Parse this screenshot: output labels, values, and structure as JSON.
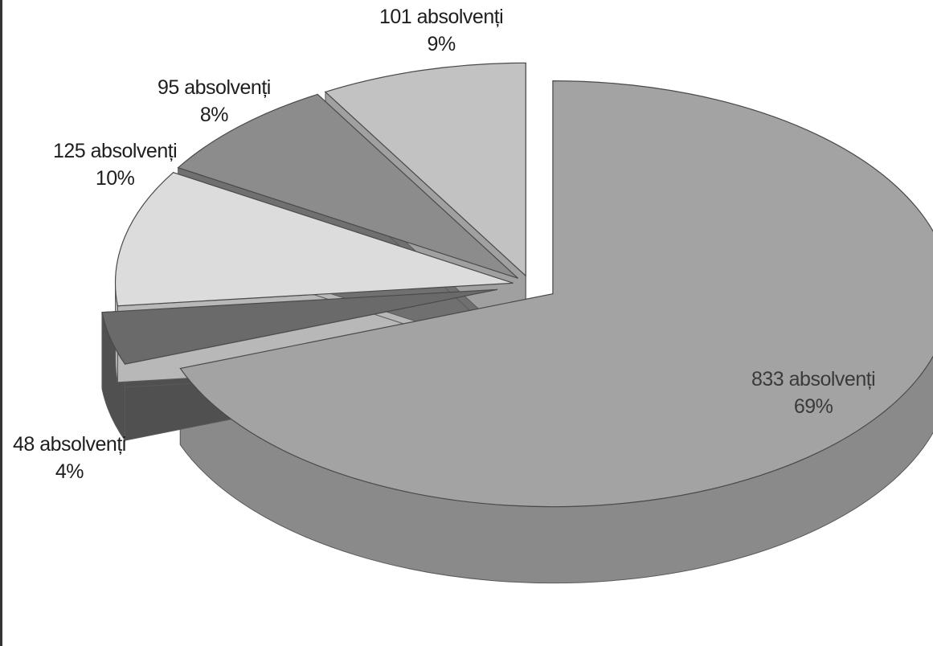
{
  "chart_data": {
    "type": "pie",
    "style": "3d-exploded",
    "title": "",
    "slices": [
      {
        "label": "833 absolvenți",
        "value": 833,
        "percent_label": "69%",
        "color": "#a3a3a3",
        "side_color": "#8a8a8a"
      },
      {
        "label": "48 absolvenți",
        "value": 48,
        "percent_label": "4%",
        "color": "#6a6a6a",
        "side_color": "#505050"
      },
      {
        "label": "125 absolvenți",
        "value": 125,
        "percent_label": "10%",
        "color": "#dcdcdc",
        "side_color": "#b8b8b8"
      },
      {
        "label": "95 absolvenți",
        "value": 95,
        "percent_label": "8%",
        "color": "#8c8c8c",
        "side_color": "#707070"
      },
      {
        "label": "101 absolvenți",
        "value": 101,
        "percent_label": "9%",
        "color": "#c2c2c2",
        "side_color": "#a0a0a0"
      }
    ],
    "legend": "none"
  }
}
